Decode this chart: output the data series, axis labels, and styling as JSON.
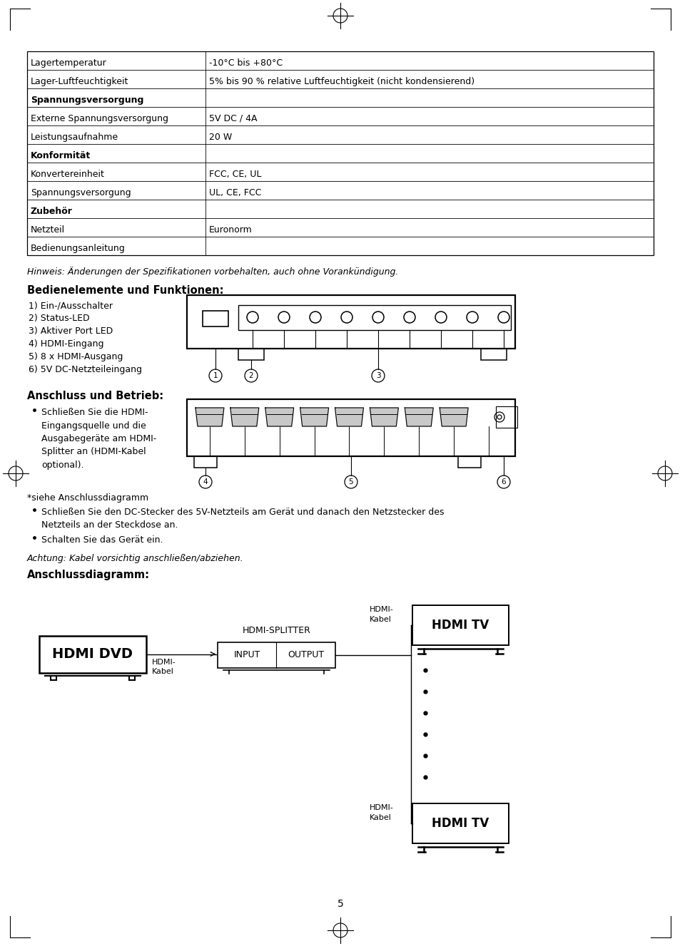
{
  "page_bg": "#ffffff",
  "table_data": [
    [
      "Lagertemperatur",
      "-10°C bis +80°C"
    ],
    [
      "Lager-Luftfeuchtigkeit",
      "5% bis 90 % relative Luftfeuchtigkeit (nicht kondensierend)"
    ],
    [
      "Spannungsversorgung",
      ""
    ],
    [
      "Externe Spannungsversorgung",
      "5V DC / 4A"
    ],
    [
      "Leistungsaufnahme",
      "20 W"
    ],
    [
      "Konformität",
      ""
    ],
    [
      "Konvertereinheit",
      "FCC, CE, UL"
    ],
    [
      "Spannungsversorgung",
      "UL, CE, FCC"
    ],
    [
      "Zubehör",
      ""
    ],
    [
      "Netzteil",
      "Euronorm"
    ],
    [
      "Bedienungsanleitung",
      ""
    ]
  ],
  "bold_rows": [
    2,
    5,
    8
  ],
  "hinweis": "Hinweis: Änderungen der Spezifikationen vorbehalten, auch ohne Vorankündigung.",
  "section1_title": "Bedienelemente und Funktionen:",
  "section1_items": [
    "1) Ein-/Ausschalter",
    "2) Status-LED",
    "3) Aktiver Port LED",
    "4) HDMI-Eingang",
    "5) 8 x HDMI-Ausgang",
    "6) 5V DC-Netzteileingang"
  ],
  "section2_title": "Anschluss und Betrieb:",
  "siehe_text": "*siehe Anschlussdiagramm",
  "section2_bullets2": [
    "Schließen Sie den DC-Stecker des 5V-Netzteils am Gerät und danach den Netzstecker des\nNetzteils an der Steckdose an.",
    "Schalten Sie das Gerät ein."
  ],
  "achtung": "Achtung: Kabel vorsichtig anschließen/abziehen.",
  "section3_title": "Anschlussdiagramm:",
  "page_number": "5"
}
